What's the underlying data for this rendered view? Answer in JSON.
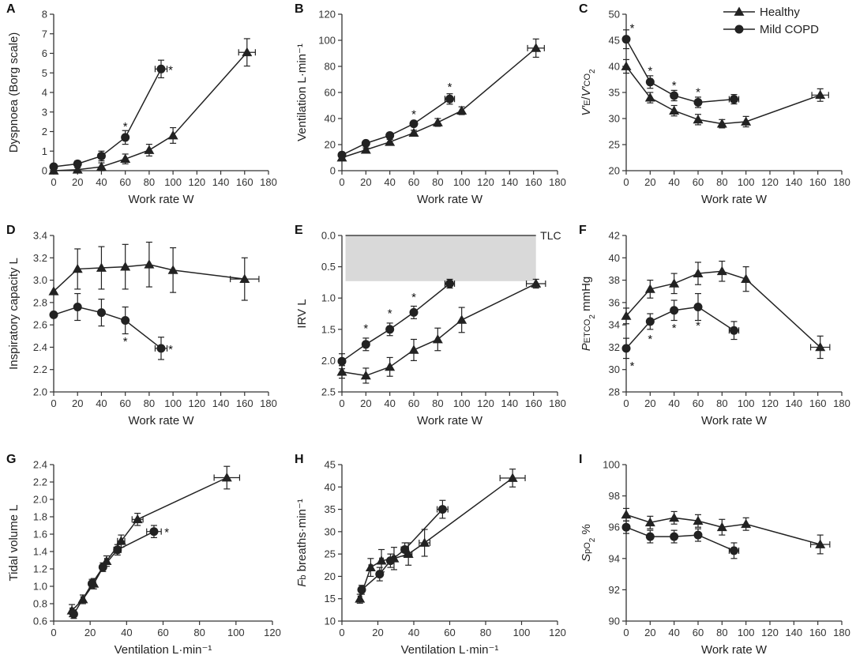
{
  "legend": {
    "healthy": "Healthy",
    "copd": "Mild COPD"
  },
  "colors": {
    "line": "#222222",
    "shade": "#d9d9d9",
    "axis": "#333333"
  },
  "chart_data": [
    {
      "id": "A",
      "type": "line",
      "xlabel": "Work rate W",
      "ylabel": "Dyspnoea (Borg scale)",
      "xlim": [
        0,
        180
      ],
      "ylim": [
        0,
        8
      ],
      "xticks": [
        0,
        20,
        40,
        60,
        80,
        100,
        120,
        140,
        160,
        180
      ],
      "yticks": [
        0,
        1,
        2,
        3,
        4,
        5,
        6,
        7,
        8
      ],
      "series": [
        {
          "name": "Healthy",
          "marker": "triangle",
          "x": [
            0,
            20,
            40,
            60,
            80,
            100,
            162
          ],
          "y": [
            0,
            0.05,
            0.2,
            0.6,
            1.05,
            1.8,
            6.05
          ],
          "yerr": [
            0,
            0.1,
            0.2,
            0.25,
            0.3,
            0.4,
            0.7
          ],
          "xerr": [
            0,
            0,
            0,
            0,
            0,
            0,
            7
          ]
        },
        {
          "name": "Mild COPD",
          "marker": "circle",
          "x": [
            0,
            20,
            40,
            60,
            90
          ],
          "y": [
            0.2,
            0.35,
            0.75,
            1.7,
            5.2
          ],
          "yerr": [
            0.1,
            0.15,
            0.25,
            0.35,
            0.45
          ],
          "xerr": [
            0,
            0,
            0,
            0,
            5
          ]
        }
      ],
      "stars": [
        {
          "x": 60,
          "y": 2.3,
          "t": "*"
        },
        {
          "x": 98,
          "y": 5.2,
          "t": "*"
        }
      ]
    },
    {
      "id": "B",
      "type": "line",
      "xlabel": "Work rate W",
      "ylabel": "Ventilation L·min⁻¹",
      "xlim": [
        0,
        180
      ],
      "ylim": [
        0,
        120
      ],
      "xticks": [
        0,
        20,
        40,
        60,
        80,
        100,
        120,
        140,
        160,
        180
      ],
      "yticks": [
        0,
        20,
        40,
        60,
        80,
        100,
        120
      ],
      "series": [
        {
          "name": "Healthy",
          "marker": "triangle",
          "x": [
            0,
            20,
            40,
            60,
            80,
            100,
            162
          ],
          "y": [
            10,
            16,
            22,
            29,
            37,
            46,
            94
          ],
          "yerr": [
            1,
            1.5,
            2,
            2,
            3,
            3,
            7
          ],
          "xerr": [
            0,
            0,
            0,
            0,
            0,
            0,
            7
          ]
        },
        {
          "name": "Mild COPD",
          "marker": "circle",
          "x": [
            0,
            20,
            40,
            60,
            90
          ],
          "y": [
            12,
            21,
            27,
            36,
            55
          ],
          "yerr": [
            1,
            1.5,
            2,
            2,
            4
          ],
          "xerr": [
            0,
            0,
            0,
            0,
            4
          ]
        }
      ],
      "stars": [
        {
          "x": 60,
          "y": 44,
          "t": "*"
        },
        {
          "x": 90,
          "y": 65,
          "t": "*"
        }
      ]
    },
    {
      "id": "C",
      "type": "line",
      "xlabel": "Work rate W",
      "ylabel": "V'E/V'CO2",
      "xlim": [
        0,
        180
      ],
      "ylim": [
        20,
        50
      ],
      "xticks": [
        0,
        20,
        40,
        60,
        80,
        100,
        120,
        140,
        160,
        180
      ],
      "yticks": [
        20,
        25,
        30,
        35,
        40,
        45,
        50
      ],
      "series": [
        {
          "name": "Healthy",
          "marker": "triangle",
          "x": [
            0,
            20,
            40,
            60,
            80,
            100,
            162
          ],
          "y": [
            40,
            34,
            31.5,
            29.8,
            29,
            29.4,
            34.5
          ],
          "yerr": [
            1.3,
            1,
            1,
            1,
            0.8,
            1,
            1.2
          ],
          "xerr": [
            0,
            0,
            0,
            0,
            0,
            0,
            7
          ]
        },
        {
          "name": "Mild COPD",
          "marker": "circle",
          "x": [
            0,
            20,
            40,
            60,
            90
          ],
          "y": [
            45.2,
            37,
            34.4,
            33.1,
            33.7
          ],
          "yerr": [
            1.8,
            1.2,
            1,
            1,
            0.9
          ],
          "xerr": [
            0,
            0,
            0,
            0,
            4
          ]
        }
      ],
      "stars": [
        {
          "x": 5,
          "y": 47.5,
          "t": "*"
        },
        {
          "x": 20,
          "y": 39.3,
          "t": "*"
        },
        {
          "x": 40,
          "y": 36.5,
          "t": "*"
        },
        {
          "x": 60,
          "y": 35.2,
          "t": "*"
        }
      ]
    },
    {
      "id": "D",
      "type": "line",
      "xlabel": "Work rate W",
      "ylabel": "Inspiratory capacity L",
      "xlim": [
        0,
        180
      ],
      "ylim": [
        2.0,
        3.4
      ],
      "xticks": [
        0,
        20,
        40,
        60,
        80,
        100,
        120,
        140,
        160,
        180
      ],
      "yticks": [
        2.0,
        2.2,
        2.4,
        2.6,
        2.8,
        3.0,
        3.2,
        3.4
      ],
      "series": [
        {
          "name": "Healthy",
          "marker": "triangle",
          "x": [
            0,
            20,
            40,
            60,
            80,
            100,
            160
          ],
          "y": [
            2.9,
            3.1,
            3.11,
            3.12,
            3.14,
            3.09,
            3.01
          ],
          "yerr": [
            0,
            0.18,
            0.19,
            0.2,
            0.2,
            0.2,
            0.19
          ],
          "xerr": [
            0,
            0,
            0,
            0,
            0,
            0,
            12
          ]
        },
        {
          "name": "Mild COPD",
          "marker": "circle",
          "x": [
            0,
            20,
            40,
            60,
            90
          ],
          "y": [
            2.69,
            2.76,
            2.71,
            2.64,
            2.39
          ],
          "yerr": [
            0,
            0.12,
            0.12,
            0.12,
            0.1
          ],
          "xerr": [
            0,
            0,
            0,
            0,
            5
          ]
        }
      ],
      "stars": [
        {
          "x": 60,
          "y": 2.46,
          "t": "*"
        },
        {
          "x": 98,
          "y": 2.39,
          "t": "*"
        }
      ]
    },
    {
      "id": "E",
      "type": "line",
      "xlabel": "Work rate W",
      "ylabel": "IRV L",
      "xlim": [
        0,
        180
      ],
      "ylim": [
        0,
        2.5
      ],
      "yinverted": true,
      "xticks": [
        0,
        20,
        40,
        60,
        80,
        100,
        120,
        140,
        160,
        180
      ],
      "yticks": [
        0,
        0.5,
        1.0,
        1.5,
        2.0,
        2.5
      ],
      "shade": {
        "x0": 3,
        "x1": 162,
        "y0": 0,
        "y1": 0.73
      },
      "tlc": {
        "label": "TLC",
        "y": 0
      },
      "series": [
        {
          "name": "Healthy",
          "marker": "triangle",
          "x": [
            0,
            20,
            40,
            60,
            80,
            100,
            162
          ],
          "y": [
            2.18,
            2.24,
            2.1,
            1.83,
            1.66,
            1.35,
            0.77
          ],
          "yerr": [
            0.1,
            0.12,
            0.15,
            0.17,
            0.18,
            0.2,
            0.07
          ],
          "xerr": [
            0,
            0,
            0,
            0,
            0,
            0,
            8
          ]
        },
        {
          "name": "Mild COPD",
          "marker": "circle",
          "x": [
            0,
            20,
            40,
            60,
            90
          ],
          "y": [
            2.01,
            1.74,
            1.5,
            1.23,
            0.77
          ],
          "yerr": [
            0.12,
            0.1,
            0.1,
            0.1,
            0.07
          ],
          "xerr": [
            0,
            0,
            0,
            0,
            4
          ]
        }
      ],
      "stars": [
        {
          "x": 20,
          "y": 1.47,
          "t": "*"
        },
        {
          "x": 40,
          "y": 1.23,
          "t": "*"
        },
        {
          "x": 60,
          "y": 0.97,
          "t": "*"
        }
      ]
    },
    {
      "id": "F",
      "type": "line",
      "xlabel": "Work rate W",
      "ylabel": "PETCO2 mmHg",
      "xlim": [
        0,
        180
      ],
      "ylim": [
        28,
        42
      ],
      "xticks": [
        0,
        20,
        40,
        60,
        80,
        100,
        120,
        140,
        160,
        180
      ],
      "yticks": [
        28,
        30,
        32,
        34,
        36,
        38,
        40,
        42
      ],
      "series": [
        {
          "name": "Healthy",
          "marker": "triangle",
          "x": [
            0,
            20,
            40,
            60,
            80,
            100,
            162
          ],
          "y": [
            34.8,
            37.2,
            37.7,
            38.6,
            38.8,
            38.1,
            32
          ],
          "yerr": [
            0.7,
            0.8,
            0.9,
            1,
            0.9,
            1.1,
            1
          ],
          "xerr": [
            0,
            0,
            0,
            0,
            0,
            0,
            8
          ]
        },
        {
          "name": "Mild COPD",
          "marker": "circle",
          "x": [
            0,
            20,
            40,
            60,
            90
          ],
          "y": [
            31.9,
            34.3,
            35.3,
            35.6,
            33.5
          ],
          "yerr": [
            0.9,
            0.7,
            0.9,
            1.2,
            0.8
          ],
          "xerr": [
            0,
            0,
            0,
            0,
            4
          ]
        }
      ],
      "stars": [
        {
          "x": 5,
          "y": 30.4,
          "t": "*"
        },
        {
          "x": 20,
          "y": 32.8,
          "t": "*"
        },
        {
          "x": 40,
          "y": 33.8,
          "t": "*"
        },
        {
          "x": 60,
          "y": 34,
          "t": "*"
        }
      ]
    },
    {
      "id": "G",
      "type": "line",
      "xlabel": "Ventilation L·min⁻¹",
      "ylabel": "Tidal volume L",
      "xlim": [
        0,
        120
      ],
      "ylim": [
        0.6,
        2.4
      ],
      "xticks": [
        0,
        20,
        40,
        60,
        80,
        100,
        120
      ],
      "yticks": [
        0.6,
        0.8,
        1.0,
        1.2,
        1.4,
        1.6,
        1.8,
        2.0,
        2.2,
        2.4
      ],
      "series": [
        {
          "name": "Healthy",
          "marker": "triangle",
          "x": [
            10,
            16,
            22,
            29,
            37,
            46,
            95
          ],
          "y": [
            0.72,
            0.85,
            1.03,
            1.29,
            1.52,
            1.77,
            2.25
          ],
          "yerr": [
            0.07,
            0.05,
            0.06,
            0.06,
            0.07,
            0.07,
            0.13
          ],
          "xerr": [
            1,
            1,
            1,
            1,
            2,
            3,
            7
          ]
        },
        {
          "name": "Mild COPD",
          "marker": "circle",
          "x": [
            11,
            21,
            27,
            35,
            55
          ],
          "y": [
            0.68,
            1.03,
            1.22,
            1.42,
            1.63
          ],
          "yerr": [
            0.05,
            0.05,
            0.05,
            0.06,
            0.07
          ],
          "xerr": [
            1,
            1,
            1,
            2,
            4
          ]
        }
      ],
      "stars": [
        {
          "x": 62,
          "y": 1.63,
          "t": "*"
        }
      ]
    },
    {
      "id": "H",
      "type": "line",
      "xlabel": "Ventilation L·min⁻¹",
      "ylabel": "Fb breaths·min⁻¹",
      "xlim": [
        0,
        120
      ],
      "ylim": [
        10,
        45
      ],
      "xticks": [
        0,
        20,
        40,
        60,
        80,
        100,
        120
      ],
      "yticks": [
        10,
        15,
        20,
        25,
        30,
        35,
        40,
        45
      ],
      "series": [
        {
          "name": "Healthy",
          "marker": "triangle",
          "x": [
            10,
            16,
            22,
            29,
            37,
            46,
            95
          ],
          "y": [
            15,
            22,
            23.5,
            24,
            25,
            27.5,
            42
          ],
          "yerr": [
            1,
            2,
            2.5,
            2.5,
            2.5,
            3,
            2
          ],
          "xerr": [
            1,
            1,
            1,
            1,
            2,
            3,
            7
          ]
        },
        {
          "name": "Mild COPD",
          "marker": "circle",
          "x": [
            11,
            21,
            27,
            35,
            56
          ],
          "y": [
            17,
            20.5,
            23.5,
            26,
            35
          ],
          "yerr": [
            1,
            1.5,
            1.5,
            1.5,
            2
          ],
          "xerr": [
            1,
            1,
            1,
            2,
            3
          ]
        }
      ],
      "stars": []
    },
    {
      "id": "I",
      "type": "line",
      "xlabel": "Work rate W",
      "ylabel": "SpO2 %",
      "xlim": [
        0,
        180
      ],
      "ylim": [
        90,
        100
      ],
      "xticks": [
        0,
        20,
        40,
        60,
        80,
        100,
        120,
        140,
        160,
        180
      ],
      "yticks": [
        90,
        92,
        94,
        96,
        98,
        100
      ],
      "series": [
        {
          "name": "Healthy",
          "marker": "triangle",
          "x": [
            0,
            20,
            40,
            60,
            80,
            100,
            162
          ],
          "y": [
            96.8,
            96.3,
            96.6,
            96.4,
            96,
            96.2,
            94.9
          ],
          "yerr": [
            0.4,
            0.4,
            0.4,
            0.4,
            0.5,
            0.4,
            0.6
          ],
          "xerr": [
            0,
            0,
            0,
            0,
            0,
            0,
            8
          ]
        },
        {
          "name": "Mild COPD",
          "marker": "circle",
          "x": [
            0,
            20,
            40,
            60,
            90
          ],
          "y": [
            96,
            95.4,
            95.4,
            95.5,
            94.5
          ],
          "yerr": [
            0.4,
            0.4,
            0.4,
            0.4,
            0.5
          ],
          "xerr": [
            0,
            0,
            0,
            0,
            4
          ]
        }
      ],
      "stars": []
    }
  ]
}
